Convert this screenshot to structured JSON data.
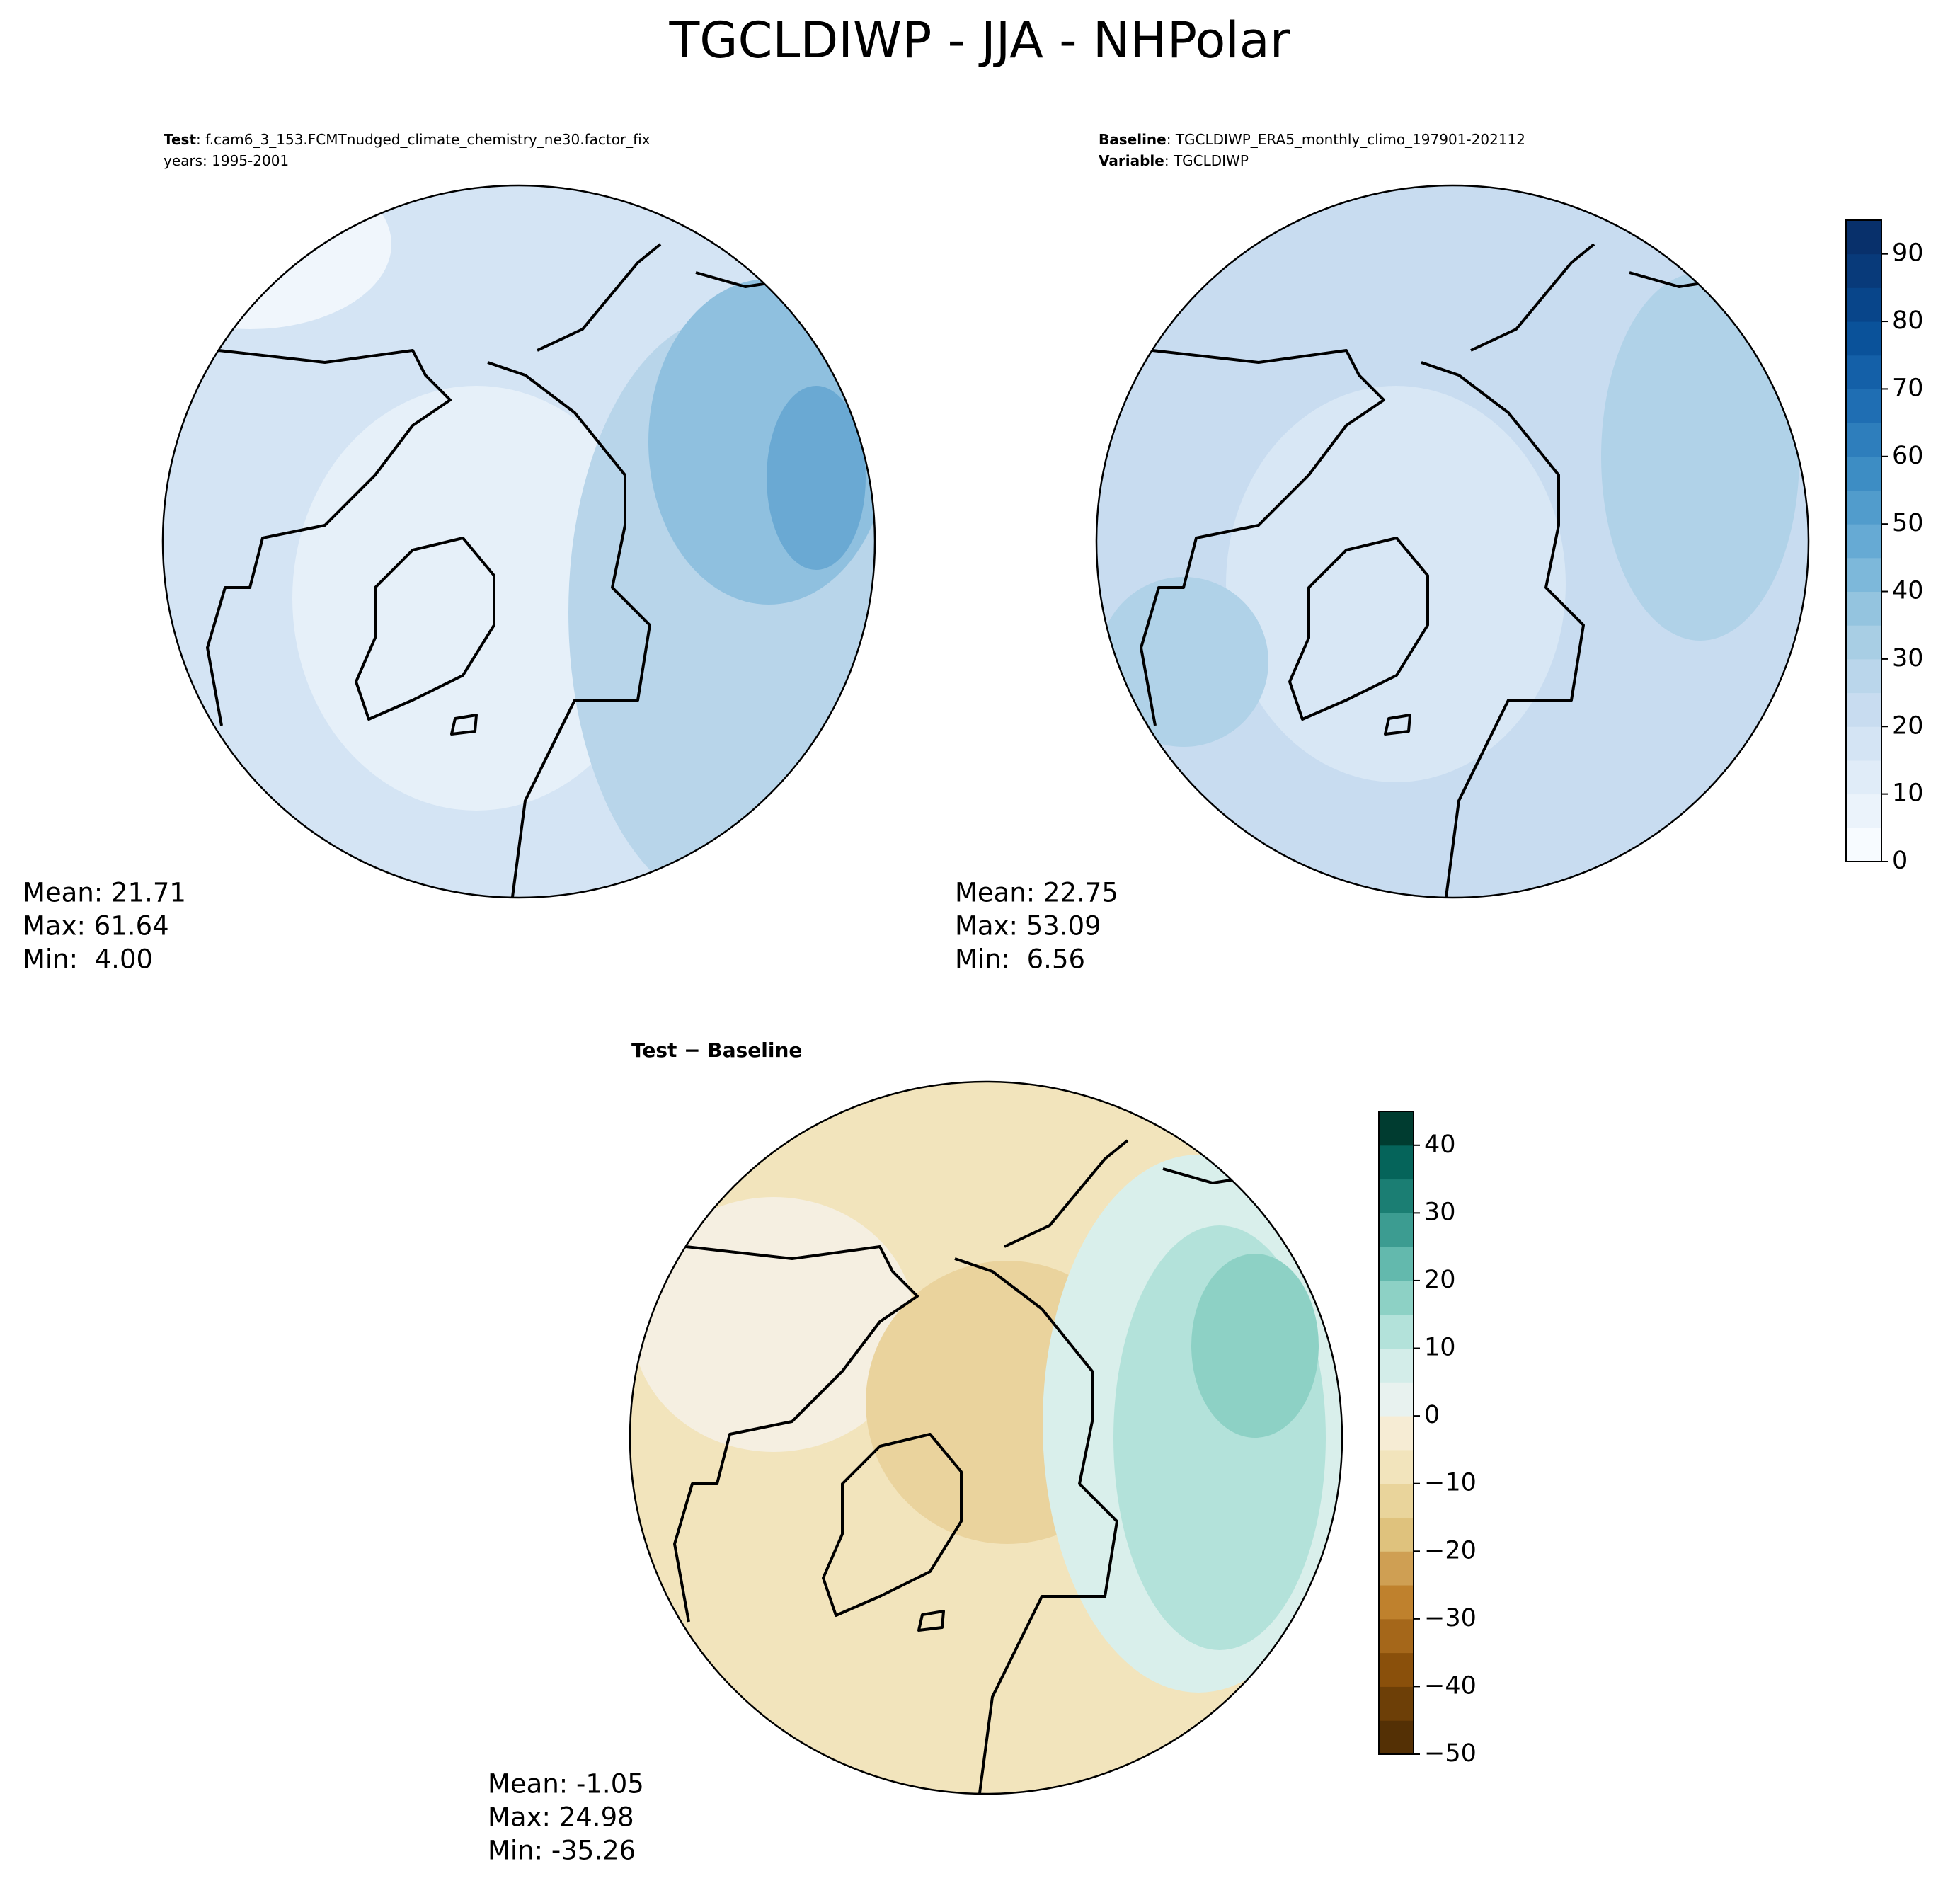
{
  "title": "TGCLDIWP - JJA - NHPolar",
  "panels": [
    {
      "header": [
        {
          "label": "Test",
          "text": ": f.cam6_3_153.FCMTnudged_climate_chemistry_ne30.factor_fix"
        },
        {
          "text": "years: 1995-2001"
        }
      ],
      "stats": [
        "Mean: 21.71",
        "Max: 61.64",
        "Min:  4.00"
      ]
    },
    {
      "header": [
        {
          "label": "Baseline",
          "text": ": TGCLDIWP_ERA5_monthly_climo_197901-202112"
        },
        {
          "label": "Variable",
          "text": ": TGCLDIWP"
        }
      ],
      "stats": [
        "Mean: 22.75",
        "Max: 53.09",
        "Min:  6.56"
      ]
    },
    {
      "header": [
        {
          "label": "Test − Baseline"
        }
      ],
      "stats": [
        "Mean: -1.05",
        "Max: 24.98",
        "Min: -35.26"
      ]
    }
  ],
  "colorbars": [
    {
      "lim": [
        0,
        95
      ],
      "ticks": [
        0,
        10,
        20,
        30,
        40,
        50,
        60,
        70,
        80,
        90
      ],
      "cmap": [
        "#f7fbff",
        "#ebf3fb",
        "#e0ecf8",
        "#d4e4f4",
        "#c8dcf0",
        "#bad6eb",
        "#a8cee4",
        "#94c4df",
        "#7db8da",
        "#66aad4",
        "#519ccc",
        "#3d8dc4",
        "#2e7ebc",
        "#1f6eb3",
        "#1460a8",
        "#0a529a",
        "#08458a",
        "#083a7a",
        "#08306b"
      ]
    },
    {
      "lim": [
        -50,
        45
      ],
      "ticks": [
        {
          "value": -50,
          "label": "−50"
        },
        {
          "value": -40,
          "label": "−40"
        },
        {
          "value": -30,
          "label": "−30"
        },
        {
          "value": -20,
          "label": "−20"
        },
        {
          "value": -10,
          "label": "−10"
        },
        0,
        10,
        20,
        30,
        40
      ],
      "cmap": [
        "#543005",
        "#6d3f07",
        "#8a500b",
        "#a5671a",
        "#bf812d",
        "#cf9f53",
        "#dfc27d",
        "#e9d49b",
        "#f2e4bc",
        "#f6ecd4",
        "#e8f2ef",
        "#d3ede9",
        "#b3e2da",
        "#8dd1c5",
        "#63b9ad",
        "#3c9c91",
        "#1b7e73",
        "#05645a",
        "#003c30"
      ]
    }
  ]
}
